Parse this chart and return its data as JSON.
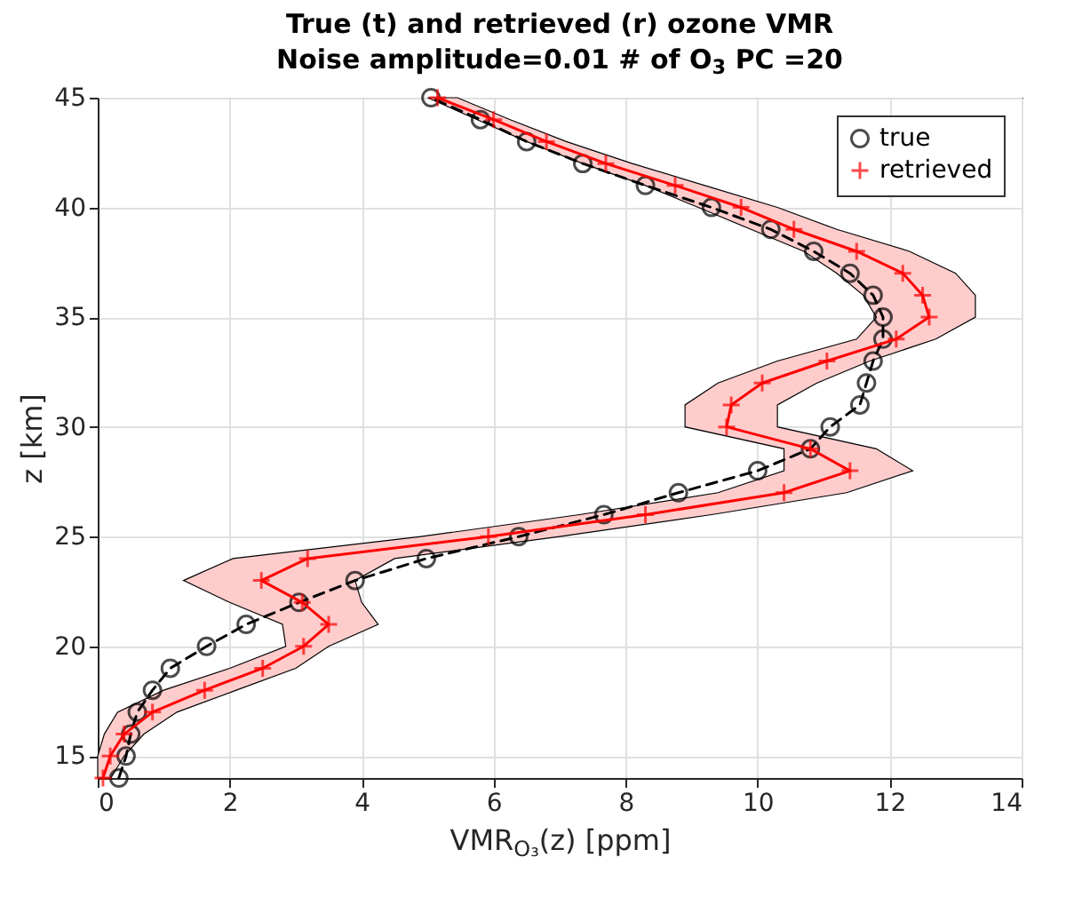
{
  "chart_data": {
    "type": "line",
    "orientation": "horizontal",
    "title": "True (t) and retrieved (r) ozone VMR",
    "subtitle": "Noise amplitude=0.01 # of O$_{3}$ PC =20",
    "xlabel": "VMR$_{O₃}$(z) [ppm]",
    "ylabel": "z [km]",
    "xlim": [
      0,
      14
    ],
    "xticks": [
      0,
      2,
      4,
      6,
      8,
      10,
      12,
      14
    ],
    "ylim": [
      14,
      45
    ],
    "yticks": [
      15,
      20,
      25,
      30,
      35,
      40,
      45
    ],
    "grid": true,
    "legend": "top right",
    "series": [
      {
        "name": "true",
        "color": "#000000",
        "marker": "circle",
        "line_style": "dashed",
        "x": [
          14,
          15,
          16,
          17,
          18,
          19,
          20,
          21,
          22,
          23,
          24,
          25,
          26,
          27,
          28,
          29,
          30,
          31,
          32,
          33,
          34,
          35,
          36,
          37,
          38,
          39,
          40,
          41,
          42,
          43,
          44,
          45
        ],
        "values": [
          0.32,
          0.43,
          0.5,
          0.6,
          0.83,
          1.1,
          1.65,
          2.25,
          3.05,
          3.9,
          4.98,
          6.38,
          7.67,
          8.8,
          10.0,
          10.8,
          11.1,
          11.55,
          11.65,
          11.75,
          11.9,
          11.9,
          11.75,
          11.4,
          10.85,
          10.2,
          9.3,
          8.3,
          7.35,
          6.5,
          5.8,
          5.05
        ]
      },
      {
        "name": "retrieved",
        "color": "#ff0000",
        "marker": "cross",
        "line_style": "solid",
        "x": [
          14,
          15,
          16,
          17,
          18,
          19,
          20,
          21,
          22,
          23,
          24,
          25,
          26,
          27,
          28,
          29,
          30,
          31,
          32,
          33,
          34,
          35,
          36,
          37,
          38,
          39,
          40,
          41,
          42,
          43,
          44,
          45
        ],
        "values": [
          0.08,
          0.19,
          0.4,
          0.83,
          1.62,
          2.5,
          3.12,
          3.5,
          3.1,
          2.48,
          3.18,
          5.92,
          8.3,
          10.4,
          11.4,
          10.8,
          9.53,
          9.6,
          10.07,
          11.05,
          12.1,
          12.6,
          12.5,
          12.2,
          11.5,
          10.55,
          9.75,
          8.75,
          7.7,
          6.8,
          6.0,
          5.15
        ],
        "lower": [
          0.0,
          0.0,
          0.1,
          0.3,
          1.0,
          2.0,
          2.85,
          2.8,
          2.0,
          1.3,
          2.05,
          4.9,
          7.3,
          9.4,
          10.4,
          10.4,
          8.9,
          8.9,
          9.4,
          10.3,
          11.5,
          11.8,
          11.6,
          11.2,
          10.7,
          9.9,
          9.1,
          8.3,
          7.35,
          6.5,
          5.75,
          5.0
        ],
        "upper": [
          0.2,
          0.4,
          0.7,
          1.2,
          2.1,
          3.0,
          3.5,
          4.25,
          4.0,
          3.9,
          4.5,
          7.0,
          9.3,
          11.35,
          12.35,
          11.8,
          10.3,
          10.3,
          10.9,
          11.7,
          12.7,
          13.3,
          13.3,
          13.0,
          12.3,
          11.2,
          10.3,
          9.2,
          8.1,
          7.1,
          6.25,
          5.45
        ]
      }
    ]
  }
}
